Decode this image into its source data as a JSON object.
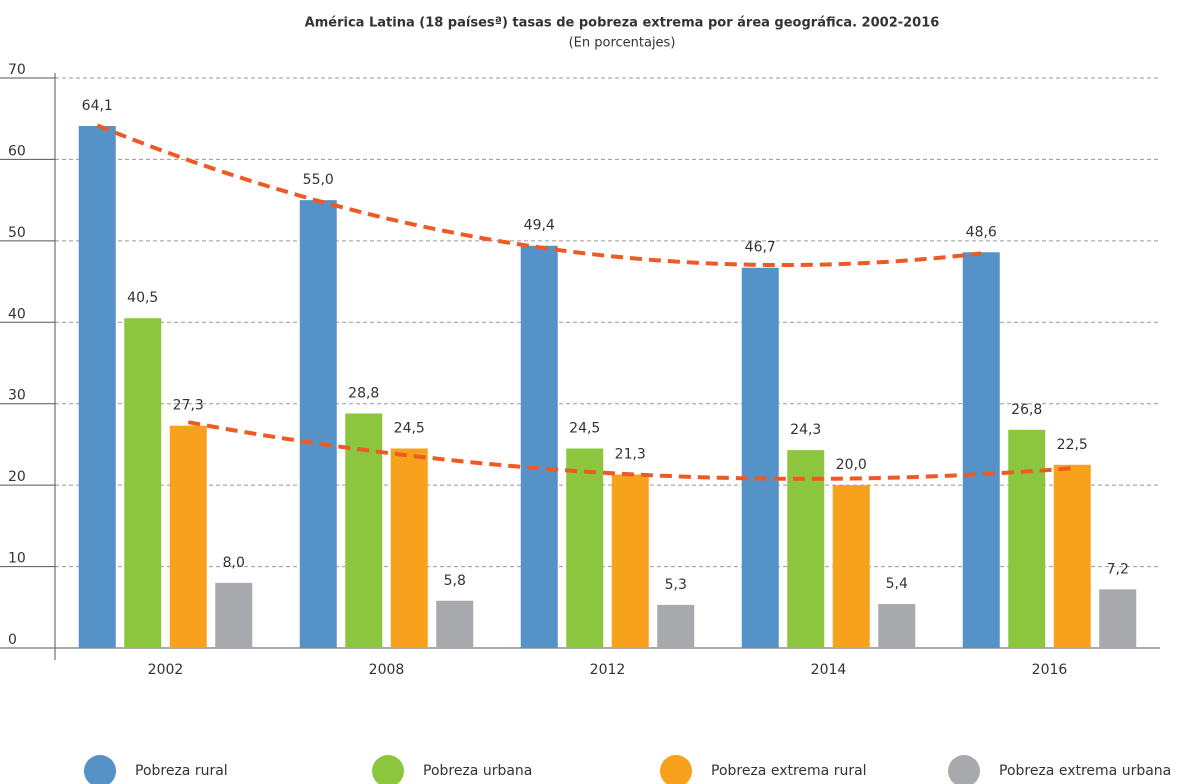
{
  "chart_data": {
    "type": "bar",
    "title": "América Latina (18 paísesª) tasas de pobreza extrema por área geográfica. 2002-2016",
    "subtitle": "(En porcentajes)",
    "categories": [
      "2002",
      "2008",
      "2012",
      "2014",
      "2016"
    ],
    "series": [
      {
        "name": "Pobreza rural",
        "color": "#5592c8",
        "values": [
          64.1,
          55.0,
          49.4,
          46.7,
          48.6
        ],
        "value_labels": [
          "64,1",
          "55,0",
          "49,4",
          "46,7",
          "48,6"
        ]
      },
      {
        "name": "Pobreza urbana",
        "color": "#8cc63f",
        "values": [
          40.5,
          28.8,
          24.5,
          24.3,
          26.8
        ],
        "value_labels": [
          "40,5",
          "28,8",
          "24,5",
          "24,3",
          "26,8"
        ]
      },
      {
        "name": "Pobreza extrema rural",
        "color": "#f7a11c",
        "values": [
          27.3,
          24.5,
          21.3,
          20.0,
          22.5
        ],
        "value_labels": [
          "27,3",
          "24,5",
          "21,3",
          "20,0",
          "22,5"
        ]
      },
      {
        "name": "Pobreza extrema urbana",
        "color": "#a7a9ac",
        "values": [
          8.0,
          5.8,
          5.3,
          5.4,
          7.2
        ],
        "value_labels": [
          "8,0",
          "5,8",
          "5,3",
          "5,4",
          "7,2"
        ]
      }
    ],
    "ylim": [
      0,
      70
    ],
    "yticks": [
      0,
      10,
      20,
      30,
      40,
      50,
      60,
      70
    ],
    "grid": true,
    "legend": "bottom",
    "trendline": {
      "color": "#ee5a24",
      "series": [
        0,
        2
      ]
    }
  }
}
